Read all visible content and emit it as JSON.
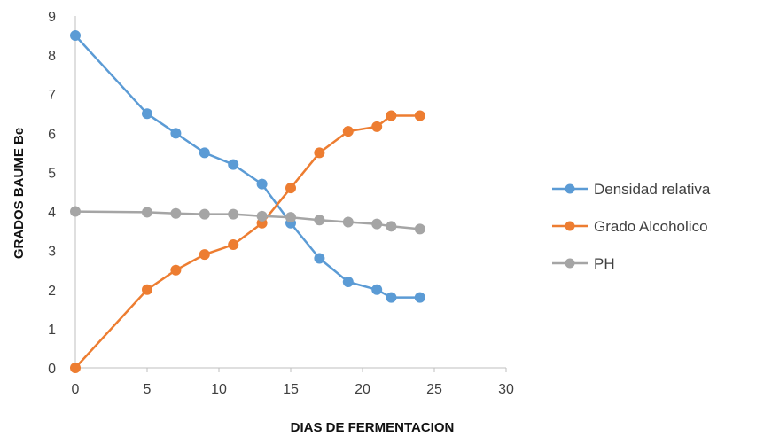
{
  "chart_data": {
    "type": "line",
    "title": "",
    "xlabel": "DIAS DE FERMENTACION",
    "ylabel": "GRADOS BAUME Be",
    "xlim": [
      0,
      30
    ],
    "ylim": [
      0,
      9
    ],
    "xticks": [
      0,
      5,
      10,
      15,
      20,
      25,
      30
    ],
    "yticks": [
      0,
      1,
      2,
      3,
      4,
      5,
      6,
      7,
      8,
      9
    ],
    "grid": false,
    "legend_position": "right",
    "series": [
      {
        "name": "Densidad relativa",
        "color": "#5B9BD5",
        "x": [
          0,
          5,
          7,
          9,
          11,
          13,
          15,
          17,
          19,
          21,
          22,
          24
        ],
        "y": [
          8.5,
          6.5,
          6.0,
          5.5,
          5.2,
          4.7,
          3.7,
          2.8,
          2.2,
          2.0,
          1.8,
          1.8
        ]
      },
      {
        "name": "Grado Alcoholico",
        "color": "#ED7D31",
        "x": [
          0,
          5,
          7,
          9,
          11,
          13,
          15,
          17,
          19,
          21,
          22,
          24
        ],
        "y": [
          0.0,
          2.0,
          2.5,
          2.9,
          3.15,
          3.7,
          4.6,
          5.5,
          6.05,
          6.17,
          6.45,
          6.45
        ]
      },
      {
        "name": "PH",
        "color": "#A5A5A5",
        "x": [
          0,
          5,
          7,
          9,
          11,
          13,
          15,
          17,
          19,
          21,
          22,
          24
        ],
        "y": [
          4.0,
          3.98,
          3.95,
          3.93,
          3.93,
          3.88,
          3.85,
          3.78,
          3.73,
          3.68,
          3.62,
          3.55
        ]
      }
    ]
  }
}
